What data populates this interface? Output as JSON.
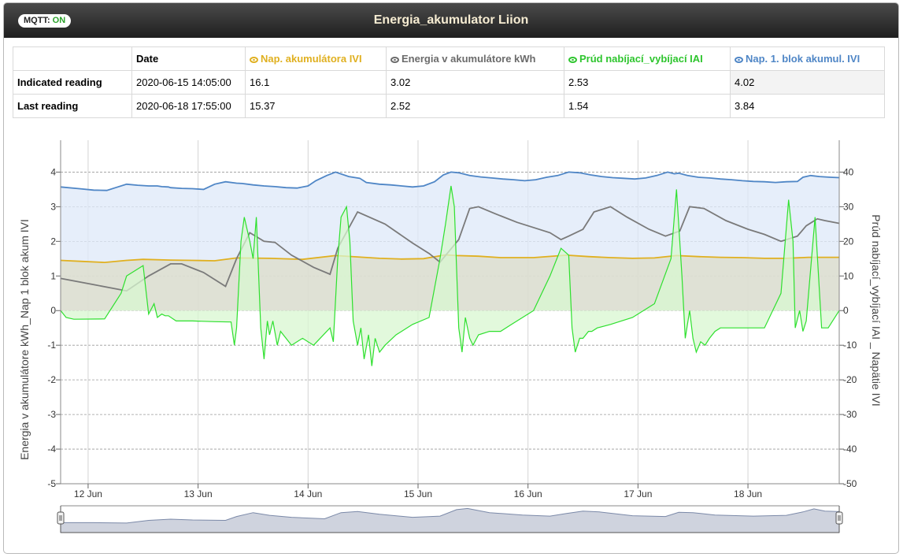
{
  "header": {
    "mqtt_label": "MQTT:",
    "mqtt_status": "ON",
    "title": "Energia_akumulator Liion"
  },
  "table": {
    "date_header": "Date",
    "columns": [
      {
        "label": "Nap. akumulátora IVI",
        "color": "#e0b020"
      },
      {
        "label": "Energia v akumulátore kWh",
        "color": "#6b6b6b"
      },
      {
        "label": "Prúd nabíjací_vybíjací IAI",
        "color": "#2ec52e"
      },
      {
        "label": "Nap. 1. blok akumul. IVI",
        "color": "#4f86c6"
      }
    ],
    "rows": [
      {
        "label": "Indicated reading",
        "date": "2020-06-15 14:05:00",
        "values": [
          "16.1",
          "3.02",
          "2.53",
          "4.02"
        ]
      },
      {
        "label": "Last reading",
        "date": "2020-06-18 17:55:00",
        "values": [
          "15.37",
          "2.52",
          "1.54",
          "3.84"
        ]
      }
    ]
  },
  "chart_data": {
    "type": "line",
    "x_ticks": [
      "12 Jun",
      "13 Jun",
      "14 Jun",
      "15 Jun",
      "16 Jun",
      "17 Jun",
      "18 Jun"
    ],
    "x_range": [
      "2020-06-11 18:00",
      "2020-06-18 20:00"
    ],
    "y_left": {
      "label": "Energia v akumulátore kWh_Nap 1 blok akum IVI",
      "range": [
        -5,
        4
      ],
      "ticks": [
        -5,
        -4,
        -3,
        -2,
        -1,
        0,
        1,
        2,
        3,
        4
      ]
    },
    "y_right": {
      "label": "Prúd nabíjací_vybíjací IAI _ Napätie IVI",
      "range": [
        -50,
        40
      ],
      "ticks": [
        -50,
        -40,
        -30,
        -20,
        -10,
        0,
        10,
        20,
        30,
        40
      ]
    },
    "grid": true,
    "series": [
      {
        "name": "Nap. 1. blok akumul. IVI",
        "axis": "left",
        "color": "#4f86c6",
        "fill": "#dde8f8",
        "x": [
          0,
          0.17,
          0.3,
          0.42,
          0.5,
          0.6,
          0.7,
          0.8,
          0.88,
          0.92,
          0.98,
          1.0,
          1.1,
          1.2,
          1.3,
          1.4,
          1.5,
          1.6,
          1.65,
          1.75,
          1.85,
          1.95,
          2.05,
          2.15,
          2.25,
          2.32,
          2.42,
          2.5,
          2.62,
          2.72,
          2.78,
          2.9,
          3.0,
          3.1,
          3.2,
          3.3,
          3.4,
          3.48,
          3.55,
          3.62,
          3.72,
          3.82,
          3.92,
          4.02,
          4.12,
          4.22,
          4.32,
          4.42,
          4.52,
          4.62,
          4.72,
          4.82,
          4.92,
          5.02,
          5.12,
          5.22,
          5.32,
          5.42,
          5.52,
          5.58,
          5.62,
          5.7,
          5.8,
          5.9,
          6.0,
          6.1,
          6.2,
          6.3,
          6.4,
          6.5,
          6.6,
          6.7,
          6.75,
          6.82,
          6.9,
          7.0,
          7.08
        ],
        "y": [
          3.57,
          3.52,
          3.48,
          3.47,
          3.55,
          3.65,
          3.62,
          3.6,
          3.6,
          3.58,
          3.57,
          3.55,
          3.53,
          3.52,
          3.5,
          3.65,
          3.72,
          3.68,
          3.67,
          3.63,
          3.6,
          3.58,
          3.55,
          3.54,
          3.6,
          3.75,
          3.9,
          4.0,
          3.87,
          3.82,
          3.7,
          3.65,
          3.63,
          3.6,
          3.57,
          3.6,
          3.72,
          3.92,
          4.0,
          3.98,
          3.9,
          3.86,
          3.83,
          3.8,
          3.78,
          3.75,
          3.78,
          3.85,
          3.9,
          4.0,
          3.98,
          3.92,
          3.87,
          3.84,
          3.82,
          3.8,
          3.83,
          3.9,
          4.0,
          3.95,
          3.97,
          3.9,
          3.85,
          3.83,
          3.8,
          3.78,
          3.75,
          3.73,
          3.72,
          3.7,
          3.72,
          3.73,
          3.85,
          3.9,
          3.87,
          3.85,
          3.84
        ]
      },
      {
        "name": "Nap. akumulátora IVI",
        "axis": "right",
        "color": "#e0b020",
        "fill": "#dcdcc8",
        "x": [
          0,
          0.2,
          0.4,
          0.6,
          0.75,
          1.0,
          1.2,
          1.4,
          1.6,
          1.9,
          2.2,
          2.5,
          2.7,
          2.9,
          3.1,
          3.3,
          3.5,
          3.6,
          3.8,
          4.0,
          4.3,
          4.6,
          4.8,
          5.0,
          5.2,
          5.4,
          5.6,
          5.8,
          6.0,
          6.2,
          6.4,
          6.6,
          6.8,
          7.08
        ],
        "y": [
          14.5,
          14.2,
          13.9,
          14.5,
          14.8,
          14.6,
          14.5,
          14.4,
          15.2,
          15.1,
          14.8,
          15.9,
          15.5,
          15.1,
          14.9,
          15.0,
          16.1,
          15.9,
          15.7,
          15.3,
          15.3,
          16.0,
          15.6,
          15.3,
          15.1,
          15.2,
          15.9,
          15.6,
          15.4,
          15.3,
          15.1,
          15.1,
          15.4,
          15.4
        ]
      },
      {
        "name": "Energia v akumulátore kWh",
        "axis": "left",
        "color": "#7a7a7a",
        "fill": "none",
        "x": [
          0,
          0.3,
          0.6,
          0.8,
          1.0,
          1.1,
          1.3,
          1.5,
          1.6,
          1.72,
          1.85,
          1.95,
          2.1,
          2.3,
          2.45,
          2.52,
          2.7,
          2.95,
          3.2,
          3.35,
          3.45,
          3.62,
          3.72,
          3.8,
          3.95,
          4.15,
          4.3,
          4.45,
          4.55,
          4.62,
          4.75,
          4.85,
          5.0,
          5.15,
          5.35,
          5.5,
          5.63,
          5.72,
          5.85,
          6.05,
          6.25,
          6.4,
          6.55,
          6.7,
          6.78,
          6.88,
          6.95,
          7.08
        ],
        "y": [
          0.93,
          0.75,
          0.57,
          1.0,
          1.35,
          1.35,
          1.1,
          0.7,
          1.5,
          2.25,
          2.0,
          1.97,
          1.6,
          1.25,
          1.05,
          1.8,
          2.85,
          2.5,
          1.95,
          1.65,
          1.4,
          2.05,
          2.95,
          3.0,
          2.8,
          2.55,
          2.4,
          2.25,
          2.05,
          2.15,
          2.35,
          2.85,
          3.0,
          2.7,
          2.35,
          2.15,
          2.3,
          3.0,
          2.95,
          2.6,
          2.35,
          2.2,
          2.0,
          2.15,
          2.45,
          2.65,
          2.6,
          2.52
        ]
      },
      {
        "name": "Prúd nabíjací_vybíjací IAI",
        "axis": "right",
        "color": "#2ee02e",
        "fill": "#d8f7d0",
        "x": [
          0,
          0.05,
          0.12,
          0.4,
          0.55,
          0.6,
          0.75,
          0.8,
          0.85,
          0.88,
          0.92,
          0.95,
          0.98,
          1.05,
          1.2,
          1.4,
          1.55,
          1.58,
          1.6,
          1.64,
          1.67,
          1.72,
          1.75,
          1.78,
          1.82,
          1.85,
          1.88,
          1.9,
          1.93,
          1.97,
          2.0,
          2.1,
          2.2,
          2.3,
          2.45,
          2.48,
          2.52,
          2.55,
          2.6,
          2.63,
          2.66,
          2.7,
          2.73,
          2.76,
          2.8,
          2.83,
          2.86,
          2.9,
          2.95,
          3.05,
          3.2,
          3.35,
          3.45,
          3.5,
          3.55,
          3.58,
          3.62,
          3.65,
          3.68,
          3.72,
          3.75,
          3.8,
          3.9,
          4.0,
          4.1,
          4.2,
          4.3,
          4.45,
          4.55,
          4.62,
          4.65,
          4.68,
          4.72,
          4.75,
          4.8,
          4.83,
          4.88,
          5.0,
          5.2,
          5.4,
          5.55,
          5.6,
          5.65,
          5.68,
          5.72,
          5.75,
          5.78,
          5.82,
          5.86,
          5.9,
          5.95,
          6.0,
          6.2,
          6.4,
          6.55,
          6.62,
          6.66,
          6.68,
          6.72,
          6.75,
          6.78,
          6.82,
          6.86,
          6.92,
          6.98,
          7.08
        ],
        "y": [
          0,
          -2,
          -2.5,
          -2.4,
          5,
          10,
          13,
          -1,
          2,
          -2,
          -1,
          -1.5,
          -1.5,
          -3,
          -3,
          -3.2,
          -3.3,
          -10,
          -5,
          20,
          27,
          20,
          15,
          27,
          -5,
          -14,
          -3,
          -7,
          -3,
          -10,
          -6,
          -10,
          -8,
          -10,
          -5,
          -9,
          15,
          27,
          30,
          20,
          -3,
          -10,
          -5,
          -14,
          -7,
          -16,
          -8,
          -12,
          -10,
          -7,
          -4,
          -2,
          15,
          25,
          36,
          30,
          -5,
          -12,
          -2,
          -8,
          -10,
          -7,
          -6,
          -6,
          -4,
          -2,
          0,
          10,
          18,
          16,
          -5,
          -12,
          -8,
          -8,
          -6,
          -6,
          -5,
          -4,
          -2,
          2,
          15,
          35,
          10,
          -8,
          0,
          -8,
          -12,
          -9,
          -10,
          -8,
          -6,
          -5,
          -5,
          -5,
          5,
          32,
          20,
          -5,
          0,
          -6,
          -3,
          12,
          27,
          -5,
          -5,
          0
        ]
      }
    ],
    "navigator": {
      "color": "#7b89a8",
      "x": [
        0,
        0.3,
        0.6,
        0.8,
        1.0,
        1.2,
        1.5,
        1.6,
        1.75,
        1.9,
        2.1,
        2.4,
        2.55,
        2.7,
        2.9,
        3.2,
        3.45,
        3.6,
        3.7,
        3.9,
        4.2,
        4.45,
        4.6,
        4.75,
        4.9,
        5.2,
        5.5,
        5.62,
        5.75,
        5.95,
        6.3,
        6.6,
        6.75,
        6.85,
        6.95,
        7.08
      ],
      "y": [
        2.6,
        2.6,
        2.5,
        3.2,
        3.5,
        3.3,
        3.2,
        4.2,
        5.2,
        4.5,
        4.0,
        3.6,
        5.2,
        5.5,
        4.8,
        4.0,
        4.3,
        6.0,
        6.3,
        5.2,
        4.6,
        4.3,
        5.0,
        5.6,
        5.4,
        4.4,
        4.2,
        5.3,
        5.2,
        4.6,
        4.3,
        4.5,
        5.4,
        6.2,
        5.6,
        5.5
      ]
    }
  }
}
